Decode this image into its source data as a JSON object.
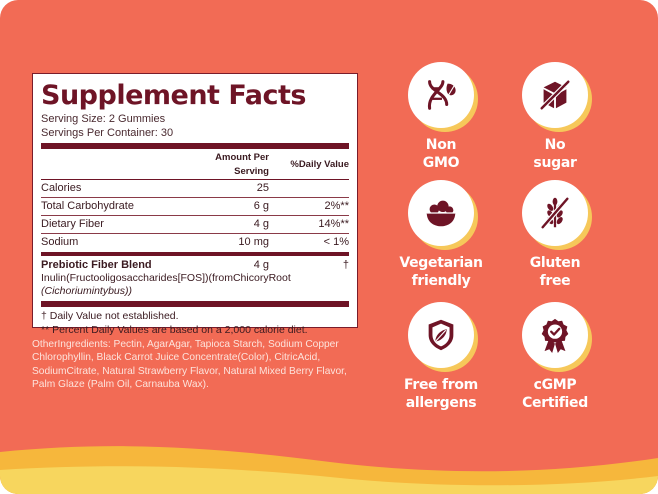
{
  "facts": {
    "title": "Supplement Facts",
    "serving_size": "Serving Size: 2 Gummies",
    "servings_per_container": "Servings Per Container: 30",
    "col_amount": "Amount Per Serving",
    "col_dv": "%Daily Value",
    "rows": [
      {
        "name": "Calories",
        "amount": "25",
        "dv": ""
      },
      {
        "name": "Total Carbohydrate",
        "amount": "6 g",
        "dv": "2%**"
      },
      {
        "name": "Dietary Fiber",
        "amount": "4 g",
        "dv": "14%**"
      },
      {
        "name": "Sodium",
        "amount": "10 mg",
        "dv": "< 1%"
      }
    ],
    "blend": {
      "name": "Prebiotic Fiber Blend",
      "amount": "4 g",
      "dv": "†"
    },
    "inulin_line1": "Inulin(Fructooligosaccharides[FOS])(fromChicoryRoot",
    "inulin_line2": "(Cichoriumintybus))",
    "note1": "† Daily Value not established.",
    "note2": "** Percent Daily Values are based on a 2,000 calorie diet."
  },
  "ingredients": "OtherIngredients: Pectin, AgarAgar, Tapioca Starch, Sodium Copper Chlorophyllin, Black Carrot Juice Concentrate(Color), CitricAcid, SodiumCitrate, Natural Strawberry Flavor, Natural Mixed Berry Flavor, Palm Glaze (Palm Oil, Carnauba Wax).",
  "badges": [
    {
      "icon": "dna-leaf-icon",
      "line1": "Non",
      "line2": "GMO"
    },
    {
      "icon": "no-sugar-cube-icon",
      "line1": "No",
      "line2": "sugar"
    },
    {
      "icon": "salad-bowl-icon",
      "line1": "Vegetarian",
      "line2": "friendly"
    },
    {
      "icon": "no-wheat-icon",
      "line1": "Gluten",
      "line2": "free"
    },
    {
      "icon": "allergen-shield-icon",
      "line1": "Free from",
      "line2": "allergens"
    },
    {
      "icon": "certified-seal-icon",
      "line1": "cGMP",
      "line2": "Certified"
    }
  ],
  "colors": {
    "background": "#f26b55",
    "accent_yellow": "#f6c85a",
    "maroon": "#6e1426"
  }
}
